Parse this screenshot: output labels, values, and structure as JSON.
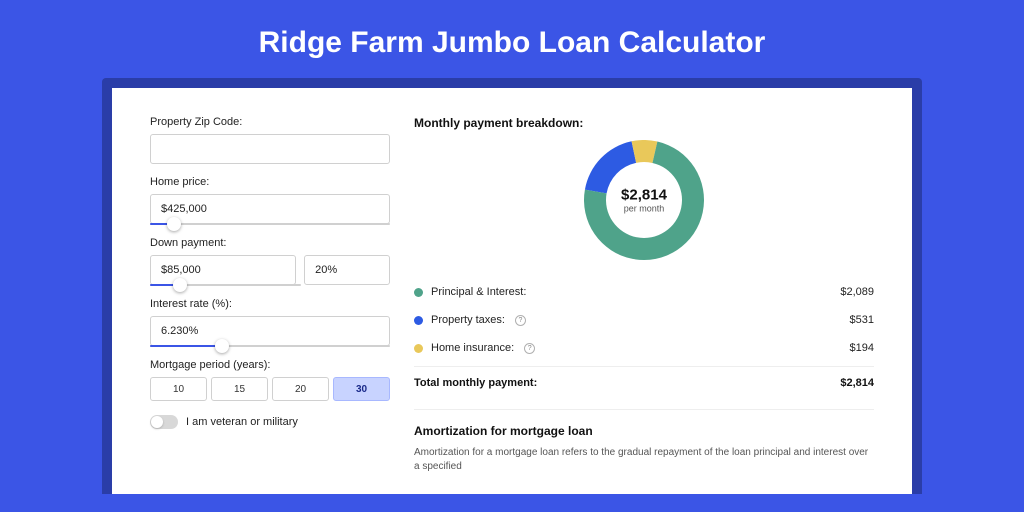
{
  "page": {
    "title": "Ridge Farm Jumbo Loan Calculator",
    "background_color": "#3b55e6",
    "outer_card_color": "#2a3da8",
    "inner_card_color": "#ffffff"
  },
  "form": {
    "zip": {
      "label": "Property Zip Code:",
      "value": ""
    },
    "home_price": {
      "label": "Home price:",
      "value": "$425,000",
      "slider_pct": 10
    },
    "down_payment": {
      "label": "Down payment:",
      "amount": "$85,000",
      "percent": "20%",
      "slider_pct": 20
    },
    "interest_rate": {
      "label": "Interest rate (%):",
      "value": "6.230%",
      "slider_pct": 30
    },
    "mortgage_period": {
      "label": "Mortgage period (years):",
      "options": [
        "10",
        "15",
        "20",
        "30"
      ],
      "selected": "30"
    },
    "veteran": {
      "label": "I am veteran or military",
      "checked": false
    }
  },
  "breakdown": {
    "title": "Monthly payment breakdown:",
    "donut": {
      "center_value": "$2,814",
      "center_sub": "per month",
      "slices": [
        {
          "label": "Principal & Interest",
          "value": 2089,
          "color": "#4fa38a",
          "pct": 74.2
        },
        {
          "label": "Property taxes",
          "value": 531,
          "color": "#2d5be3",
          "pct": 18.9
        },
        {
          "label": "Home insurance",
          "value": 194,
          "color": "#e9c85a",
          "pct": 6.9
        }
      ]
    },
    "legend": [
      {
        "label": "Principal & Interest:",
        "value": "$2,089",
        "color": "#4fa38a",
        "info": false
      },
      {
        "label": "Property taxes:",
        "value": "$531",
        "color": "#2d5be3",
        "info": true
      },
      {
        "label": "Home insurance:",
        "value": "$194",
        "color": "#e9c85a",
        "info": true
      }
    ],
    "total": {
      "label": "Total monthly payment:",
      "value": "$2,814"
    }
  },
  "amortization": {
    "title": "Amortization for mortgage loan",
    "text": "Amortization for a mortgage loan refers to the gradual repayment of the loan principal and interest over a specified"
  },
  "chart_style": {
    "type": "donut",
    "outer_radius": 60,
    "inner_radius": 38,
    "background_color": "#ffffff",
    "stroke_width": 22
  }
}
